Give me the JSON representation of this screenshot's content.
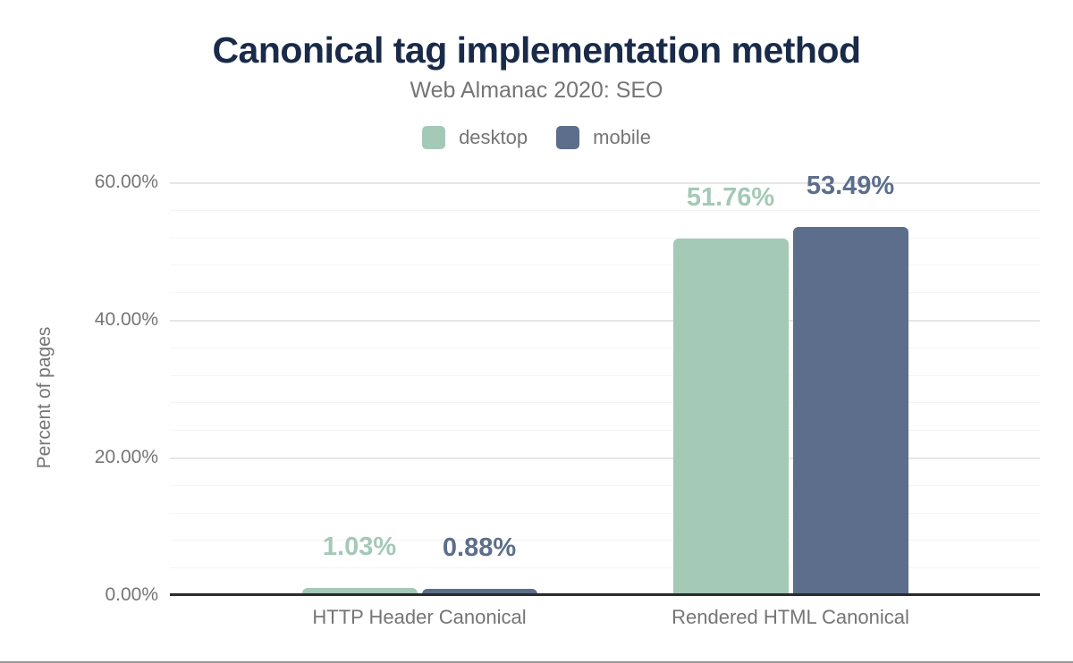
{
  "title": "Canonical tag implementation method",
  "subtitle": "Web Almanac 2020: SEO",
  "legend": [
    {
      "label": "desktop",
      "color": "#a4c9b6"
    },
    {
      "label": "mobile",
      "color": "#5c6e8b"
    }
  ],
  "y_axis": {
    "label": "Percent of pages",
    "ticks": [
      {
        "value": 0,
        "label": "0.00%"
      },
      {
        "value": 20,
        "label": "20.00%"
      },
      {
        "value": 40,
        "label": "40.00%"
      },
      {
        "value": 60,
        "label": "60.00%"
      }
    ],
    "minor_step": 4,
    "major_step": 20,
    "max": 60
  },
  "chart_data": {
    "type": "bar",
    "title": "Canonical tag implementation method",
    "subtitle": "Web Almanac 2020: SEO",
    "xlabel": "",
    "ylabel": "Percent of pages",
    "ylim": [
      0,
      64
    ],
    "grid": true,
    "legend_position": "top",
    "categories": [
      "HTTP Header Canonical",
      "Rendered HTML Canonical"
    ],
    "series": [
      {
        "name": "desktop",
        "color": "#a4c9b6",
        "values": [
          1.03,
          51.76
        ],
        "labels": [
          "1.03%",
          "51.76%"
        ]
      },
      {
        "name": "mobile",
        "color": "#5c6e8b",
        "values": [
          0.88,
          53.49
        ],
        "labels": [
          "0.88%",
          "53.49%"
        ]
      }
    ]
  },
  "colors": {
    "title": "#1a2b49",
    "muted_text": "#757575",
    "axis_line": "#2b2b2b",
    "major_grid": "#e6e6e6",
    "minor_grid": "#f4f4f4"
  }
}
